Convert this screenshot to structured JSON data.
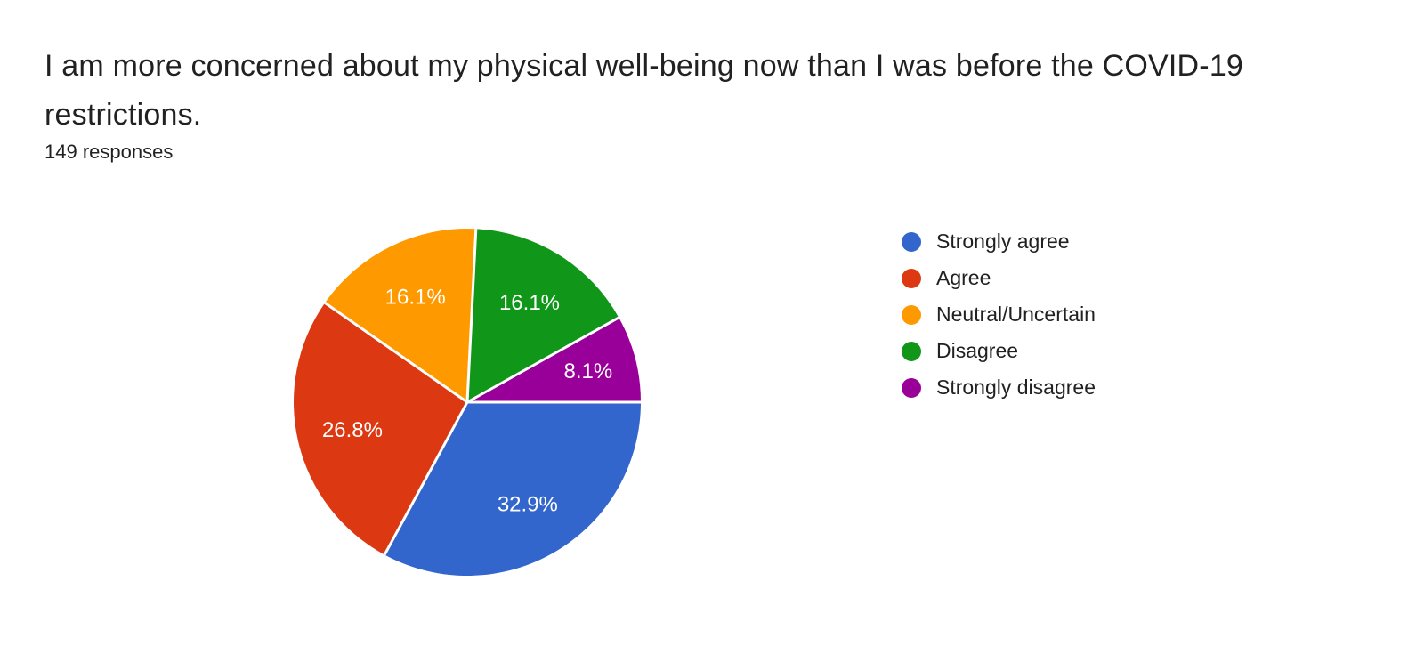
{
  "header": {
    "title": "I am more concerned about my physical well-being now than I was before the COVID-19 restrictions.",
    "responses_label": "149 responses"
  },
  "chart_data": {
    "type": "pie",
    "title": "I am more concerned about my physical well-being now than I was before the COVID-19 restrictions.",
    "subtitle": "149 responses",
    "total_responses": 149,
    "start_angle_deg": 0,
    "direction": "clockwise",
    "legend_position": "right",
    "label_color": "#ffffff",
    "slice_border_color": "#ffffff",
    "background_color": "#ffffff",
    "text_color": "#212121",
    "slices": [
      {
        "label": "Strongly agree",
        "percent": 32.9,
        "display": "32.9%",
        "color": "#3366CC"
      },
      {
        "label": "Agree",
        "percent": 26.8,
        "display": "26.8%",
        "color": "#DC3912"
      },
      {
        "label": "Neutral/Uncertain",
        "percent": 16.1,
        "display": "16.1%",
        "color": "#FF9900"
      },
      {
        "label": "Disagree",
        "percent": 16.1,
        "display": "16.1%",
        "color": "#109618"
      },
      {
        "label": "Strongly disagree",
        "percent": 8.1,
        "display": "8.1%",
        "color": "#990099"
      }
    ]
  }
}
